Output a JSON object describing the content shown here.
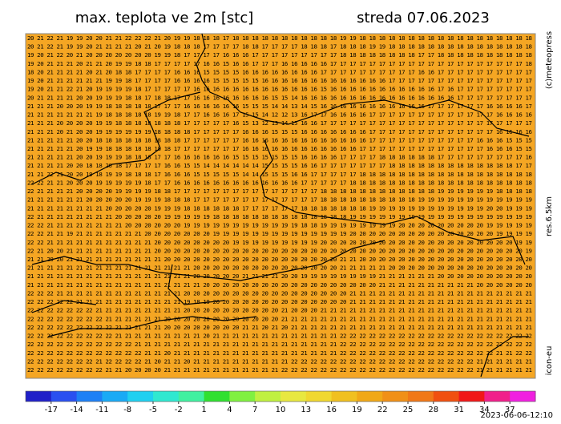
{
  "header": {
    "title": "max. teplota ve 2m [stc]",
    "date": "streda 07.06.2023"
  },
  "side": {
    "copyright": "(c)meteopress",
    "resolution": "res.6.5km",
    "model": "icon-eu"
  },
  "footer": {
    "timestamp": "2023-06-06-12:10"
  },
  "map": {
    "rows": [
      "20 21 22 21 19 19 20 20 21 21 22 22 22 21 20 19 19 18 18 18 17 18 18 18 18 18 18 18 18 18 18 18 19 19 18 18 18 18 18 18 18 18 18 18 18 18 18 18 18 18 18 18",
      "20 21 22 21 19 19 20 21 21 21 21 20 21 20 19 18 18 18 17 17 17 17 18 18 17 17 17 17 18 18 18 17 18 18 18 19 19 18 18 18 18 18 18 18 18 18 18 18 18 18 18 18",
      "19 20 21 22 20 21 20 20 20 20 20 20 20 19 19 18 17 17 17 17 16 16 16 17 17 17 17 17 17 17 17 17 18 18 18 18 18 18 18 18 17 17 18 18 18 18 18 18 18 18 18 18",
      "19 20 21 21 21 20 21 21 20 19 19 18 18 17 17 17 17 17 16 16 15 16 16 17 17 17 16 16 16 16 16 17 17 17 17 17 17 17 17 17 17 17 17 17 17 17 17 17 17 17 17 18",
      "18 20 21 21 21 21 20 21 20 18 18 17 17 17 17 16 16 16 15 15 15 15 16 16 16 16 16 16 16 16 17 17 17 17 17 17 17 17 17 17 16 16 17 17 17 17 17 17 17 17 17 17",
      "19 20 21 21 21 21 21 21 19 19 18 17 17 17 17 16 16 16 16 15 15 15 15 15 16 16 16 16 16 16 16 16 16 16 16 16 16 17 17 17 17 17 17 17 17 17 17 17 17 17 17 17",
      "19 20 21 21 22 21 20 19 19 19 19 18 17 17 17 17 17 16 16 16 16 16 16 16 16 16 16 16 16 16 15 16 16 16 16 16 16 16 16 16 16 16 17 16 17 17 17 17 17 17 17 17",
      "20 21 21 21 21 20 20 19 19 19 18 18 17 18 18 17 17 16 16 16 16 16 16 16 16 15 15 14 16 16 16 16 16 16 16 16 16 16 16 16 16 16 16 16 17 17 17 17 17 17 17 17",
      "21 21 21 20 20 20 19 19 18 18 18 18 18 17 17 17 16 16 16 16 16 16 15 15 15 14 14 13 14 15 16 16 16 16 16 16 16 16 16 16 16 17 17 17 17 17 17 16 16 16 16 17",
      "21 21 21 21 21 21 21 19 18 18 18 18 18 19 19 18 17 17 16 16 16 17 15 15 14 12 12 13 16 17 17 16 16 16 16 17 17 17 17 17 17 17 17 17 17 17 17 17 16 16 16 16",
      "21 21 21 20 20 20 20 19 19 18 18 18 18 18 18 18 17 17 17 17 17 16 15 13 12 13 14 15 16 16 17 17 17 17 17 17 17 17 17 17 17 17 17 17 17 17 17 17 17 17 17 17",
      "21 21 21 20 21 20 20 19 19 19 19 19 19 18 18 18 18 17 17 17 17 17 16 16 16 15 15 15 16 16 16 16 16 16 16 17 17 17 17 17 17 17 17 17 17 17 17 17 16 16 16 16",
      "21 21 21 21 21 20 20 18 18 18 18 18 18 18 18 18 17 17 17 17 17 17 16 16 16 16 16 16 16 16 16 16 16 16 16 17 17 17 17 17 17 17 17 17 17 17 16 16 16 15 15 15",
      "21 21 21 21 21 20 19 19 18 18 18 18 18 18 18 17 17 17 17 17 17 17 16 16 16 16 16 16 16 16 16 16 16 16 17 17 17 17 17 17 17 17 17 17 17 17 17 16 16 16 15 15",
      "21 21 21 21 21 20 20 19 19 19 18 18 18 17 17 16 16 16 16 16 16 15 15 15 15 15 15 15 16 16 16 16 17 17 17 17 18 18 18 18 18 18 17 17 17 17 17 17 17 17 17 16",
      "21 21 21 21 20 20 18 18 20 18 17 17 17 17 16 16 15 15 14 14 14 14 14 14 15 15 15 15 16 16 17 17 17 17 17 17 17 18 18 18 18 18 18 18 18 18 18 18 18 18 17 17",
      "21 21 22 21 20 20 19 18 19 19 18 18 18 17 16 16 16 15 15 15 15 15 14 14 15 15 15 16 16 17 17 17 17 17 18 18 18 18 18 18 18 18 18 18 18 18 18 18 18 18 18 18",
      "22 22 21 21 20 20 20 19 19 19 19 19 18 17 17 16 16 16 16 16 16 16 16 16 16 16 16 16 17 17 17 17 17 18 18 18 18 18 18 18 18 18 18 18 18 18 18 18 18 18 18 18",
      "22 21 21 21 21 20 20 20 20 19 19 19 19 18 18 17 17 17 17 17 17 17 17 17 17 17 17 17 17 17 18 18 18 18 18 18 18 18 18 18 18 18 19 19 19 19 19 19 18 18 18 18",
      "21 21 21 21 21 21 20 20 20 20 20 19 19 19 18 18 18 17 17 17 17 17 17 17 17 17 17 17 17 17 18 18 18 18 18 18 18 18 18 18 19 19 19 19 19 19 19 19 19 19 19 19",
      "21 21 21 21 21 21 21 21 20 20 20 20 20 19 19 19 18 18 18 18 18 18 17 17 17 17 17 17 18 18 18 18 18 18 18 19 19 19 19 19 19 19 19 19 19 19 19 20 20 19 19 19",
      "22 21 21 21 21 21 21 21 21 20 20 20 20 20 19 19 19 19 19 18 18 18 18 18 18 18 18 18 18 18 18 18 18 19 19 19 19 19 19 19 19 19 19 19 19 19 19 19 19 19 19 19",
      "22 22 21 21 21 21 21 21 21 21 20 20 20 20 20 20 19 19 19 19 19 19 19 19 19 19 19 19 18 18 19 19 19 19 19 19 19 19 20 20 20 20 20 20 20 20 20 19 19 19 19 19",
      "22 22 21 21 19 21 21 21 21 21 21 21 20 20 20 20 20 20 20 19 19 19 19 19 19 19 19 19 19 19 19 19 19 20 20 20 20 20 20 20 20 20 20 20 20 20 20 20 19 19 19 19",
      "22 22 21 21 21 21 21 21 21 21 21 21 21 20 20 20 20 20 20 20 20 19 19 19 19 19 19 19 19 19 20 20 20 20 20 20 20 20 20 20 20 20 20 20 20 20 20 20 20 20 19 19",
      "22 21 20 20 21 21 21 21 21 21 21 21 21 20 20 20 20 20 20 20 20 20 20 20 20 20 20 20 20 20 20 20 20 20 20 20 20 20 20 20 20 20 20 20 20 20 20 20 20 20 20 19",
      "21 21 20 20 21 21 21 21 21 21 21 21 21 21 20 20 20 20 20 20 20 20 20 20 20 20 20 20 20 20 20 20 21 21 20 20 20 20 20 20 20 20 20 20 20 20 20 20 20 20 20 20",
      "21 21 21 21 21 21 21 21 21 21 21 21 21 21 21 21 21 20 20 20 20 20 20 20 20 20 20 20 20 20 20 20 21 21 21 21 21 20 20 20 20 20 20 20 20 20 20 20 20 20 20 20",
      "21 21 21 21 21 21 21 21 21 21 21 21 21 21 21 21 21 20 20 20 20 20 21 21 21 21 20 20 19 19 19 19 19 19 19 19 21 21 21 21 21 21 20 20 20 20 20 20 20 20 20 20",
      "21 21 21 21 21 21 21 21 21 21 21 21 21 21 21 21 21 21 20 20 20 20 20 20 20 20 20 20 20 20 20 20 20 20 20 20 21 21 21 21 21 21 21 21 21 21 20 20 20 20 20 20",
      "22 22 22 21 21 21 21 21 21 21 21 21 21 21 21 21 20 20 20 20 20 20 20 20 20 20 20 20 20 20 20 20 20 21 21 21 21 21 21 21 21 21 21 21 21 21 21 21 21 21 21 21",
      "22 22 22 22 22 21 21 21 21 21 21 21 21 21 21 21 19 18 19 20 20 20 20 20 20 20 20 20 20 20 20 20 20 21 21 21 21 21 21 21 21 21 21 21 21 21 21 21 21 21 21 21",
      "22 22 22 22 22 22 22 21 21 21 21 21 21 21 21 21 20 20 20 20 20 20 20 20 20 20 21 20 20 20 21 21 21 21 21 21 21 21 21 21 21 21 21 21 21 21 21 21 21 21 21 21",
      "22 22 22 22 22 22 22 22 21 21 21 21 21 21 20 20 20 20 20 20 20 20 20 20 20 20 21 21 21 21 21 21 21 21 21 21 21 21 21 21 21 21 21 21 21 21 21 21 21 21 21 21",
      "22 22 22 22 22 22 22 22 22 21 21 21 21 21 20 20 20 20 20 20 20 20 21 21 20 21 20 21 21 21 21 21 21 21 21 21 21 21 21 21 21 21 21 21 21 21 21 21 21 21 21 21",
      "22 22 22 22 22 22 22 22 22 21 21 21 21 21 21 21 21 21 20 21 21 21 21 21 21 21 21 21 21 21 21 21 22 22 22 22 22 22 22 22 22 22 22 22 22 22 22 22 22 22 22 22",
      "22 22 22 22 22 22 22 22 22 22 22 21 21 21 21 21 21 21 21 21 21 21 21 21 21 21 21 21 21 21 21 21 22 22 22 22 22 22 22 22 22 22 22 22 22 22 22 22 22 22 22 22",
      "22 22 22 22 22 22 22 22 22 22 22 22 21 21 20 21 21 21 21 21 21 21 21 21 21 21 21 21 21 21 21 21 22 22 22 22 22 22 22 22 22 22 22 22 22 22 22 22 21 21 22 22",
      "22 22 22 22 22 22 22 21 22 22 22 22 21 20 21 21 20 21 21 21 21 21 21 21 21 21 21 22 22 22 22 22 22 22 22 22 22 22 22 22 22 22 22 22 22 22 21 21 21 21 21 21",
      "22 22 22 22 22 22 22 22 21 21 20 20 20 20 21 21 21 21 21 21 21 21 21 21 21 21 22 22 22 22 22 22 22 22 22 22 22 22 22 22 22 22 22 22 22 22 21 21 21 21 21 21"
    ]
  },
  "colorbar": {
    "range": [
      -20,
      40
    ],
    "ticks": [
      -17,
      -14,
      -11,
      -8,
      -5,
      -2,
      1,
      4,
      7,
      10,
      13,
      16,
      19,
      22,
      25,
      28,
      31,
      34,
      37
    ],
    "colors": [
      "#2020c8",
      "#2a50f0",
      "#1e80f5",
      "#1aaaf5",
      "#20d0f0",
      "#30e8d0",
      "#40f0a0",
      "#30e030",
      "#80f040",
      "#c0f040",
      "#e8e840",
      "#f0d830",
      "#f0c020",
      "#f0a818",
      "#f09018",
      "#f07818",
      "#f05010",
      "#f01818",
      "#f0208a",
      "#f020e0"
    ]
  }
}
